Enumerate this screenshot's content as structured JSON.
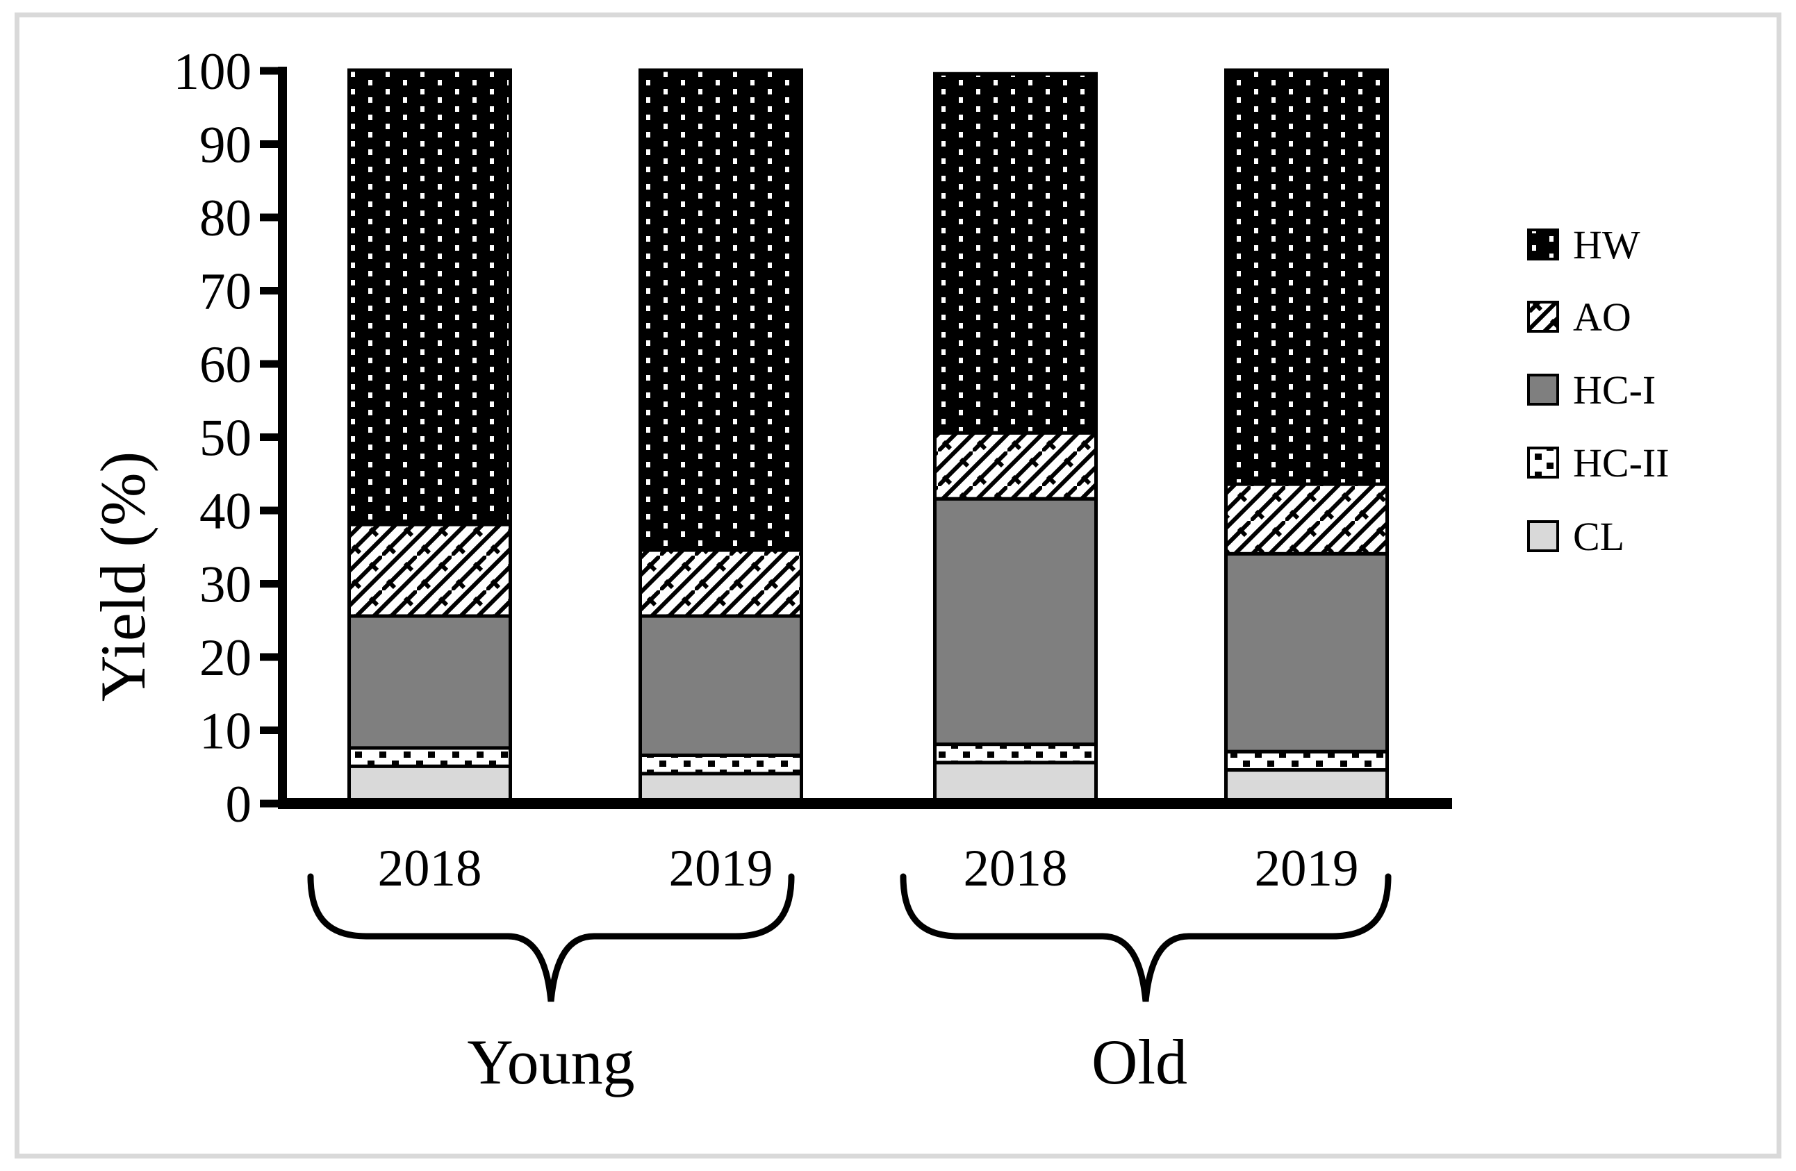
{
  "figure": {
    "type": "scientific stacked bar figure",
    "background_color": "#ffffff",
    "frame_color": "#d9d9d9",
    "ink_color": "#000000"
  },
  "chart_data": {
    "type": "bar",
    "stacked": true,
    "title": "",
    "xlabel": "",
    "ylabel": "Yield (%)",
    "ylim": [
      0,
      100
    ],
    "yticks": [
      0,
      10,
      20,
      30,
      40,
      50,
      60,
      70,
      80,
      90,
      100
    ],
    "grid": false,
    "categories": [
      "2018",
      "2019",
      "2018",
      "2019"
    ],
    "groups": [
      {
        "label": "Young",
        "bar_indexes": [
          0,
          1
        ]
      },
      {
        "label": "Old",
        "bar_indexes": [
          2,
          3
        ]
      }
    ],
    "series": [
      {
        "name": "CL",
        "swatch": "solid-light-gray",
        "color": "#d9d9d9",
        "values": [
          5.0,
          4.0,
          5.5,
          4.5
        ]
      },
      {
        "name": "HC-II",
        "swatch": "black-dots-on-white",
        "color": "#ffffff",
        "values": [
          2.5,
          2.5,
          2.5,
          2.5
        ]
      },
      {
        "name": "HC-I",
        "swatch": "solid-gray",
        "color": "#7f7f7f",
        "values": [
          18.0,
          19.0,
          33.5,
          27.0
        ]
      },
      {
        "name": "AO",
        "swatch": "diagonal-bricks",
        "color": "#ffffff",
        "values": [
          12.5,
          9.0,
          9.0,
          9.5
        ]
      },
      {
        "name": "HW",
        "swatch": "white-dots-on-black",
        "color": "#000000",
        "values": [
          62.0,
          65.5,
          49.0,
          56.5
        ]
      }
    ],
    "bar_totals": [
      100.0,
      100.0,
      99.5,
      100.0
    ],
    "legend": {
      "position": "right",
      "entries": [
        {
          "label": "HW",
          "swatch": "white-dots-on-black"
        },
        {
          "label": "AO",
          "swatch": "diagonal-bricks"
        },
        {
          "label": "HC-I",
          "swatch": "solid-gray"
        },
        {
          "label": "HC-II",
          "swatch": "black-dots-on-white"
        },
        {
          "label": "CL",
          "swatch": "solid-light-gray"
        }
      ]
    }
  }
}
